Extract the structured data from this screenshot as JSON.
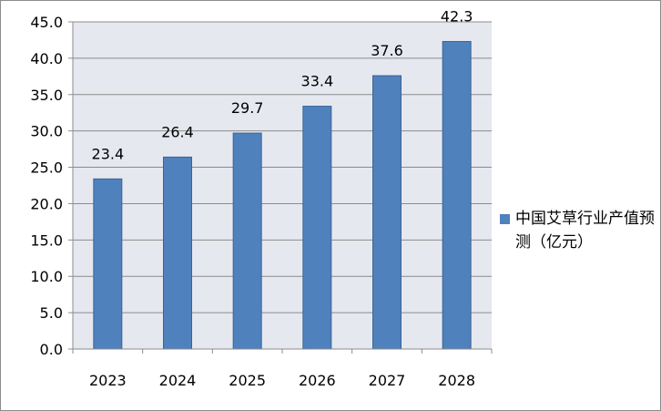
{
  "colors": {
    "bar_fill": "#4f81bd",
    "bar_stroke": "#3a6496",
    "plot_background": "#e6e8f0",
    "gridline": "#8c8c8c",
    "axis": "#8c8c8c"
  },
  "legend": {
    "label": "中国艾草行业产值预测（亿元）"
  },
  "chart_data": {
    "type": "bar",
    "title": "",
    "xlabel": "",
    "ylabel": "",
    "categories": [
      "2023",
      "2024",
      "2025",
      "2026",
      "2027",
      "2028"
    ],
    "series": [
      {
        "name": "中国艾草行业产值预测（亿元）",
        "values": [
          23.4,
          26.4,
          29.7,
          33.4,
          37.6,
          42.3
        ]
      }
    ],
    "data_labels": [
      "23.4",
      "26.4",
      "29.7",
      "33.4",
      "37.6",
      "42.3"
    ],
    "ylim": [
      0,
      45
    ],
    "y_ticks": [
      "0.0",
      "5.0",
      "10.0",
      "15.0",
      "20.0",
      "25.0",
      "30.0",
      "35.0",
      "40.0",
      "45.0"
    ],
    "grid": true,
    "legend_position": "right"
  }
}
